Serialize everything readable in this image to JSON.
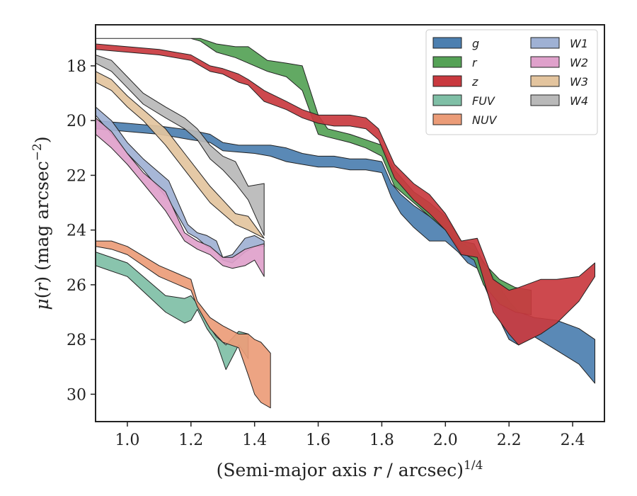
{
  "chart_data": {
    "type": "area",
    "xlabel": "(Semi-major axis r / arcsec)^1/4",
    "ylabel": "μ(r) (mag arcsec^−2)",
    "xlim": [
      0.9,
      2.5
    ],
    "ylim": [
      31,
      16.5
    ],
    "y_inverted": true,
    "x_ticks": [
      "1.0",
      "1.2",
      "1.4",
      "1.6",
      "1.8",
      "2.0",
      "2.2",
      "2.4"
    ],
    "y_ticks": [
      "18",
      "20",
      "22",
      "24",
      "26",
      "28",
      "30"
    ],
    "legend_position": "top-right",
    "legend_columns": 2,
    "series": [
      {
        "name": "g",
        "color": "#4c7fb0",
        "x": [
          0.9,
          1.0,
          1.1,
          1.2,
          1.26,
          1.3,
          1.35,
          1.4,
          1.45,
          1.5,
          1.55,
          1.6,
          1.65,
          1.7,
          1.75,
          1.8,
          1.83,
          1.86,
          1.9,
          1.95,
          2.0,
          2.04,
          2.07,
          2.1,
          2.15,
          2.2,
          2.23,
          2.28,
          2.35,
          2.42,
          2.47
        ],
        "lower": [
          20.0,
          20.1,
          20.2,
          20.35,
          20.5,
          20.8,
          20.9,
          20.9,
          20.9,
          21.0,
          21.2,
          21.3,
          21.3,
          21.4,
          21.4,
          21.5,
          22.3,
          22.7,
          23.1,
          23.5,
          23.9,
          24.4,
          24.6,
          24.8,
          25.7,
          26.6,
          27.0,
          27.2,
          27.3,
          27.6,
          28.0
        ],
        "upper": [
          20.3,
          20.4,
          20.5,
          20.7,
          20.8,
          21.1,
          21.15,
          21.2,
          21.3,
          21.5,
          21.6,
          21.7,
          21.7,
          21.8,
          21.8,
          21.9,
          22.8,
          23.4,
          23.9,
          24.4,
          24.4,
          24.8,
          25.2,
          25.4,
          26.8,
          28.0,
          28.2,
          27.9,
          28.4,
          28.9,
          29.6
        ]
      },
      {
        "name": "r",
        "color": "#55a256",
        "x": [
          0.9,
          1.0,
          1.1,
          1.2,
          1.23,
          1.28,
          1.34,
          1.38,
          1.44,
          1.5,
          1.55,
          1.6,
          1.63,
          1.7,
          1.75,
          1.8,
          1.84,
          1.9,
          1.95,
          2.0,
          2.05,
          2.09,
          2.12,
          2.17,
          2.22,
          2.27
        ],
        "lower": [
          17.0,
          17.0,
          17.0,
          17.0,
          17.0,
          17.2,
          17.3,
          17.3,
          17.8,
          17.9,
          18.0,
          19.8,
          20.3,
          20.5,
          20.7,
          20.9,
          21.8,
          22.6,
          23.0,
          23.5,
          24.4,
          24.5,
          25.2,
          25.8,
          26.1,
          26.2
        ],
        "upper": [
          17.0,
          17.0,
          17.0,
          17.0,
          17.1,
          17.5,
          17.7,
          17.9,
          18.2,
          18.4,
          18.9,
          20.5,
          20.6,
          20.8,
          21.0,
          21.3,
          22.4,
          23.0,
          23.5,
          24.0,
          24.8,
          25.1,
          26.0,
          26.7,
          27.0,
          27.1
        ]
      },
      {
        "name": "z",
        "color": "#c9393f",
        "x": [
          0.9,
          1.0,
          1.1,
          1.2,
          1.26,
          1.3,
          1.35,
          1.38,
          1.43,
          1.5,
          1.55,
          1.6,
          1.65,
          1.7,
          1.75,
          1.79,
          1.84,
          1.9,
          1.95,
          2.0,
          2.05,
          2.1,
          2.15,
          2.2,
          2.23,
          2.3,
          2.35,
          2.42,
          2.47
        ],
        "lower": [
          17.2,
          17.3,
          17.4,
          17.6,
          18.0,
          18.1,
          18.3,
          18.5,
          18.9,
          19.3,
          19.6,
          19.8,
          19.8,
          19.8,
          19.9,
          20.3,
          21.6,
          22.3,
          22.7,
          23.4,
          24.4,
          24.3,
          25.8,
          26.2,
          26.1,
          25.8,
          25.8,
          25.7,
          25.2
        ],
        "upper": [
          17.4,
          17.5,
          17.6,
          17.8,
          18.2,
          18.3,
          18.6,
          18.7,
          19.3,
          19.6,
          19.9,
          20.1,
          20.2,
          20.2,
          20.3,
          20.7,
          22.1,
          22.9,
          23.4,
          24.0,
          24.9,
          25.0,
          27.0,
          27.8,
          28.2,
          27.8,
          27.4,
          26.6,
          25.7
        ]
      },
      {
        "name": "FUV",
        "color": "#7fbfa6",
        "x": [
          0.9,
          1.0,
          1.12,
          1.18,
          1.2,
          1.22,
          1.25,
          1.28,
          1.31,
          1.35,
          1.38
        ],
        "lower": [
          24.8,
          25.2,
          26.4,
          26.5,
          26.4,
          26.7,
          27.4,
          27.9,
          28.2,
          27.7,
          27.8
        ],
        "upper": [
          25.3,
          25.7,
          27.0,
          27.4,
          27.3,
          26.9,
          27.6,
          28.1,
          29.1,
          28.2,
          28.7
        ]
      },
      {
        "name": "NUV",
        "color": "#eb9c78",
        "x": [
          0.9,
          0.95,
          1.0,
          1.1,
          1.2,
          1.22,
          1.26,
          1.3,
          1.35,
          1.38,
          1.4,
          1.42,
          1.45
        ],
        "lower": [
          24.4,
          24.4,
          24.6,
          25.3,
          25.8,
          26.6,
          27.2,
          27.5,
          27.8,
          27.8,
          28.0,
          28.1,
          28.5
        ],
        "upper": [
          24.6,
          24.7,
          24.9,
          25.7,
          26.2,
          26.8,
          27.6,
          28.1,
          28.3,
          29.3,
          30.0,
          30.3,
          30.5
        ]
      },
      {
        "name": "W1",
        "color": "#9fb1d4",
        "x": [
          0.9,
          0.95,
          1.0,
          1.05,
          1.13,
          1.19,
          1.22,
          1.25,
          1.28,
          1.3,
          1.33,
          1.37,
          1.4,
          1.43
        ],
        "lower": [
          19.5,
          20.0,
          20.8,
          21.4,
          22.2,
          23.8,
          24.1,
          24.2,
          24.4,
          25.0,
          24.9,
          24.3,
          24.2,
          24.4
        ],
        "upper": [
          19.8,
          20.5,
          21.2,
          21.8,
          22.9,
          24.1,
          24.3,
          24.6,
          24.8,
          25.1,
          25.2,
          24.8,
          24.6,
          24.6
        ]
      },
      {
        "name": "W2",
        "color": "#dfa1cb",
        "x": [
          0.9,
          0.95,
          1.0,
          1.05,
          1.12,
          1.18,
          1.22,
          1.26,
          1.3,
          1.33,
          1.37,
          1.4,
          1.43
        ],
        "lower": [
          19.9,
          20.4,
          21.2,
          21.9,
          22.6,
          24.1,
          24.4,
          24.6,
          25.0,
          25.0,
          24.7,
          24.6,
          24.5
        ],
        "upper": [
          20.5,
          21.0,
          21.6,
          22.3,
          23.3,
          24.4,
          24.7,
          24.9,
          25.3,
          25.4,
          25.3,
          25.1,
          25.7
        ]
      },
      {
        "name": "W3",
        "color": "#e3c49e",
        "x": [
          0.9,
          0.95,
          1.0,
          1.05,
          1.12,
          1.18,
          1.22,
          1.26,
          1.3,
          1.34,
          1.38,
          1.43
        ],
        "lower": [
          18.2,
          18.5,
          19.1,
          19.6,
          20.3,
          21.2,
          21.8,
          22.4,
          22.9,
          23.4,
          23.5,
          24.3
        ],
        "upper": [
          18.6,
          18.9,
          19.5,
          20.0,
          20.9,
          21.8,
          22.4,
          23.0,
          23.4,
          23.8,
          24.0,
          24.3
        ]
      },
      {
        "name": "W4",
        "color": "#b9b9b9",
        "x": [
          0.9,
          0.95,
          1.0,
          1.05,
          1.12,
          1.18,
          1.22,
          1.26,
          1.3,
          1.34,
          1.38,
          1.43
        ],
        "lower": [
          17.6,
          17.8,
          18.4,
          19.0,
          19.5,
          19.9,
          20.3,
          20.9,
          21.3,
          21.5,
          22.4,
          22.3
        ],
        "upper": [
          17.9,
          18.2,
          18.8,
          19.4,
          19.9,
          20.3,
          20.7,
          21.4,
          21.8,
          22.3,
          22.9,
          24.2
        ]
      }
    ]
  }
}
